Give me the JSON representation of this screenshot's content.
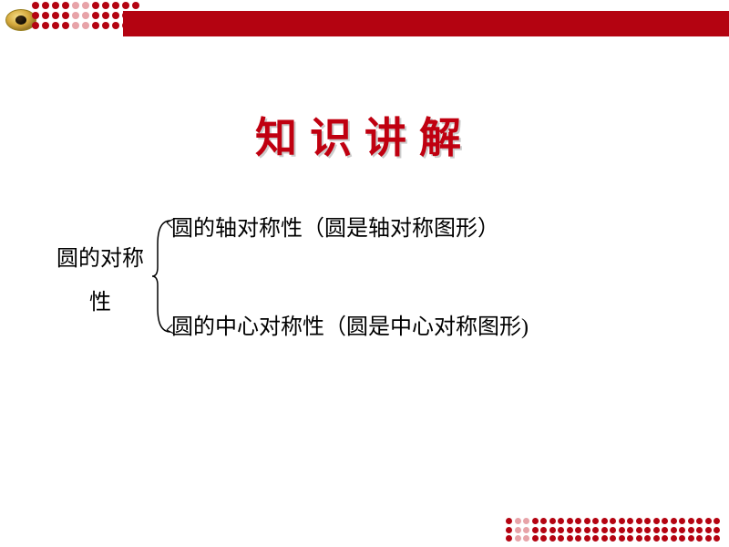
{
  "colors": {
    "header_bar": "#b40311",
    "dot_dark": "#b40311",
    "dot_light": "#e7a3a8",
    "title_color": "#c00010",
    "text_color": "#000000",
    "bracket_color": "#000000",
    "background": "#ffffff"
  },
  "title": {
    "text": "知识讲解",
    "fontsize": 46,
    "letter_spacing": 14
  },
  "diagram": {
    "root": "圆的对称性",
    "branches": [
      "圆的轴对称性（圆是轴对称图形）",
      "圆的中心对称性（圆是中心对称图形)"
    ],
    "fontsize": 24
  },
  "top_dots": {
    "cols": 11,
    "rows": 3,
    "light_cols": [
      4,
      5
    ]
  },
  "bottom_dots": {
    "cols": 25,
    "rows": 3,
    "light_cols": [
      1,
      2
    ]
  }
}
